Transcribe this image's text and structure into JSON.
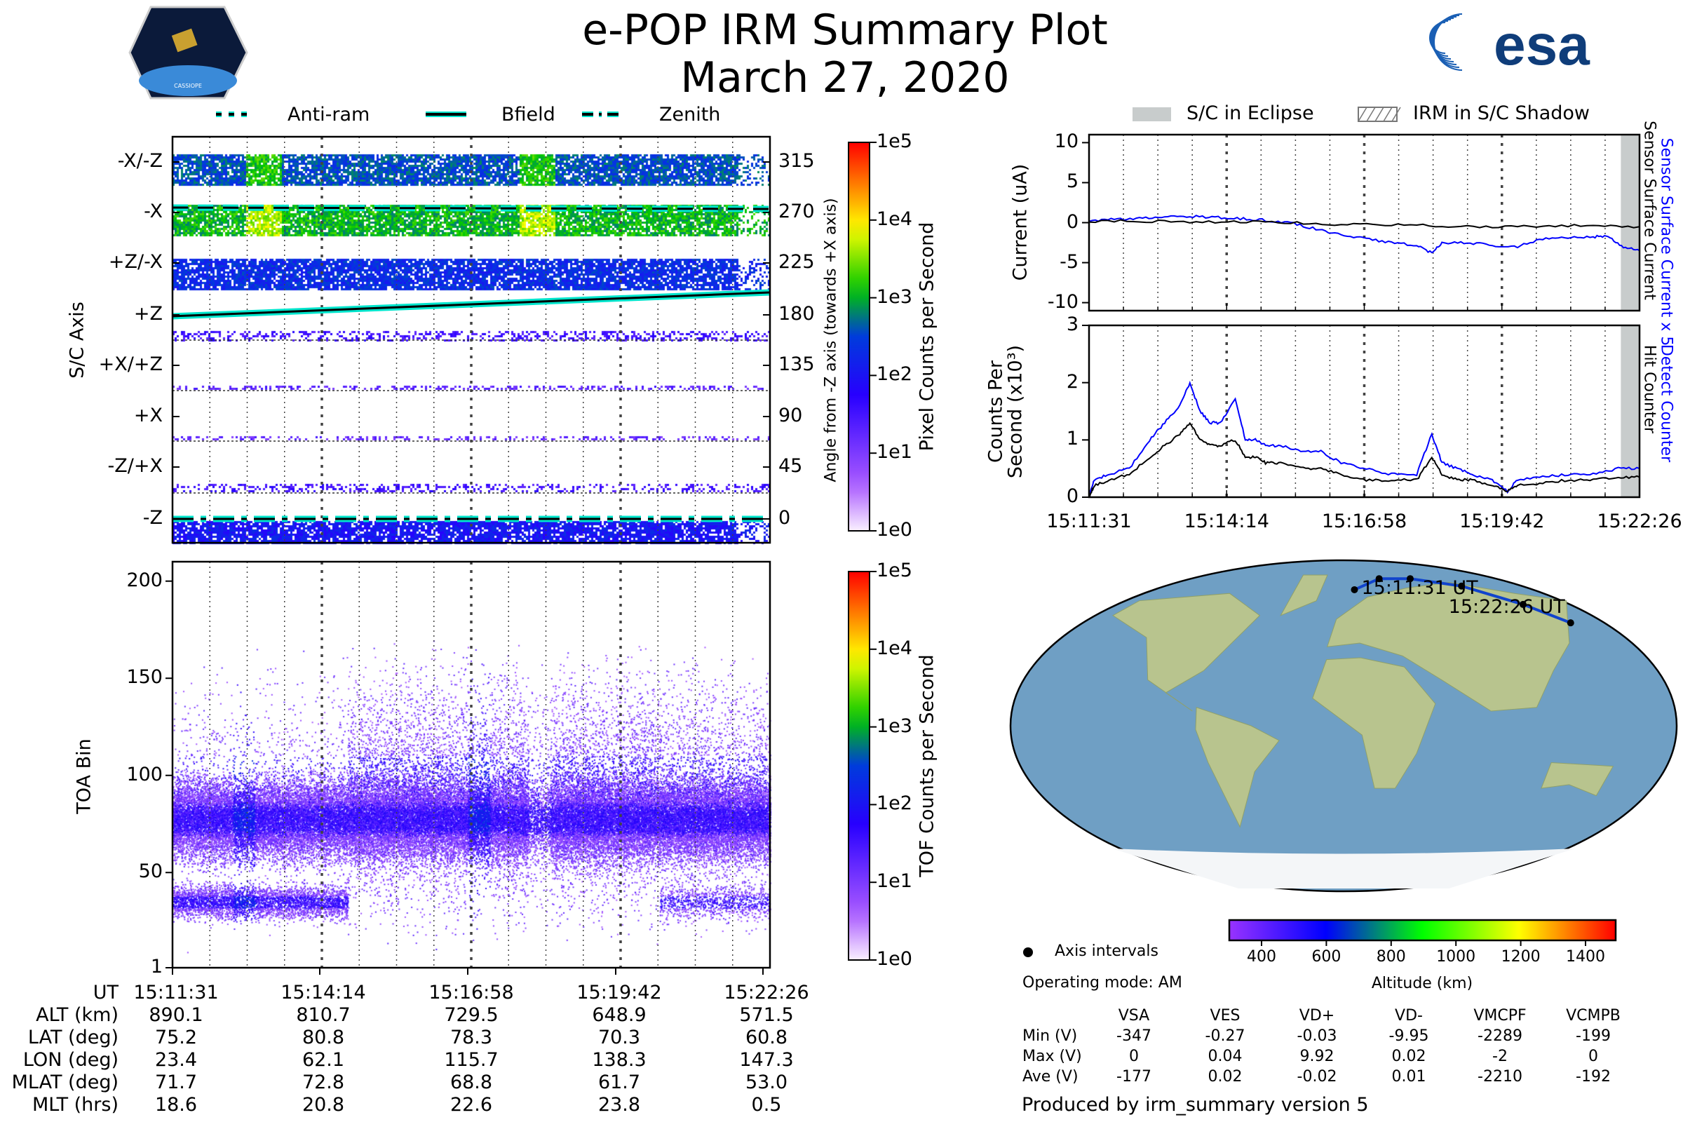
{
  "header": {
    "title": "e-POP IRM Summary Plot",
    "date": "March 27, 2020",
    "left_logo_text": "CASSIOPE",
    "right_logo_text": "esa"
  },
  "legend_left": [
    {
      "label": "Anti-ram",
      "style": "dashed"
    },
    {
      "label": "Bfield",
      "style": "solid"
    },
    {
      "label": "Zenith",
      "style": "dash-dot"
    }
  ],
  "legend_right": [
    {
      "label": "S/C in Eclipse"
    },
    {
      "label": "IRM in S/C Shadow"
    }
  ],
  "colors": {
    "cyan": "#00e5cc",
    "blue": "#0000ff",
    "eclipse": "#c8cccc"
  },
  "chart_data": [
    {
      "type": "heatmap",
      "name": "pixel-spectrogram",
      "ylabel": "S/C Axis",
      "ylabel_right": "Angle from -Z axis (towards +X axis)",
      "row_labels": [
        "-X/-Z",
        "-X",
        "+Z/-X",
        "+Z",
        "+X/+Z",
        "+X",
        "-Z/+X",
        "-Z"
      ],
      "right_ticks": [
        "315",
        "270",
        "225",
        "180",
        "135",
        "90",
        "45",
        "0"
      ],
      "colorbar_label": "Pixel Counts per Second",
      "colorbar_ticks": [
        "1e5",
        "1e4",
        "1e3",
        "1e2",
        "1e1",
        "1e0"
      ],
      "bfield_angle": {
        "x_min": [
          0,
          10.92
        ],
        "deg": [
          187,
          206
        ]
      },
      "antiram_angle_deg": 277,
      "zenith_angle_deg": 0
    },
    {
      "type": "heatmap",
      "name": "tof-spectrogram",
      "ylabel": "TOA Bin",
      "yticks": [
        "200",
        "150",
        "100",
        "50",
        "1"
      ],
      "ylim": [
        1,
        210
      ],
      "colorbar_label": "TOF Counts per Second",
      "colorbar_ticks": [
        "1e5",
        "1e4",
        "1e3",
        "1e2",
        "1e1",
        "1e0"
      ]
    },
    {
      "type": "line",
      "name": "current",
      "ylabel": "Current (uA)",
      "yticks": [
        "10",
        "5",
        "0",
        "-5",
        "-10"
      ],
      "ylim": [
        -11,
        11
      ],
      "series": [
        {
          "name": "Sensor Surface Current x 5",
          "color": "#0000ff",
          "x": [
            0,
            0.5,
            1,
            1.5,
            2,
            2.5,
            3,
            3.5,
            4,
            4.5,
            5,
            5.5,
            6,
            6.5,
            6.8,
            7,
            7.5,
            8,
            8.5,
            9,
            9.5,
            10,
            10.3,
            10.6,
            10.92
          ],
          "y": [
            0.3,
            0.4,
            0.5,
            0.7,
            0.8,
            0.7,
            0.5,
            0.3,
            0,
            -0.8,
            -1.5,
            -2,
            -2.5,
            -2.8,
            -3.8,
            -2.6,
            -2.5,
            -2.8,
            -3,
            -2,
            -1.8,
            -1.8,
            -1.7,
            -3,
            -3.5
          ]
        },
        {
          "name": "Sensor Surface Current",
          "color": "#000000",
          "x": [
            0,
            1,
            2,
            3,
            4,
            5,
            6,
            7,
            8,
            9,
            10,
            10.92
          ],
          "y": [
            0.2,
            0.2,
            0.1,
            0.1,
            0,
            -0.2,
            -0.3,
            -0.4,
            -0.5,
            -0.4,
            -0.4,
            -0.5
          ]
        }
      ],
      "eclipse_from_min": 10.55
    },
    {
      "type": "line",
      "name": "counts",
      "ylabel": "Counts Per Second (x10³)",
      "yticks": [
        "3",
        "2",
        "1",
        "0"
      ],
      "ylim": [
        0,
        3
      ],
      "xticks": [
        "15:11:31",
        "15:14:14",
        "15:16:58",
        "15:19:42",
        "15:22:26"
      ],
      "series": [
        {
          "name": "Detect Counter",
          "color": "#0000ff",
          "x": [
            0,
            0.1,
            0.4,
            0.8,
            1.2,
            1.5,
            1.8,
            2,
            2.2,
            2.4,
            2.6,
            2.9,
            3.1,
            3.3,
            3.5,
            3.8,
            4.2,
            4.6,
            5,
            5.5,
            6,
            6.5,
            6.8,
            7,
            7.3,
            7.6,
            8,
            8.3,
            8.5,
            9,
            9.5,
            10,
            10.5,
            10.92
          ],
          "y": [
            0,
            0.3,
            0.4,
            0.5,
            1.0,
            1.3,
            1.6,
            2.0,
            1.5,
            1.3,
            1.3,
            1.7,
            1.0,
            1.0,
            0.9,
            0.9,
            0.8,
            0.8,
            0.6,
            0.5,
            0.4,
            0.4,
            1.1,
            0.6,
            0.5,
            0.4,
            0.3,
            0.1,
            0.3,
            0.35,
            0.4,
            0.4,
            0.5,
            0.5
          ]
        },
        {
          "name": "Hit Counter",
          "color": "#000000",
          "x": [
            0,
            0.1,
            0.4,
            0.8,
            1.2,
            1.5,
            1.8,
            2,
            2.2,
            2.4,
            2.6,
            2.9,
            3.1,
            3.3,
            3.5,
            3.8,
            4.2,
            4.6,
            5,
            5.5,
            6,
            6.5,
            6.8,
            7,
            7.3,
            7.6,
            8,
            8.3,
            8.5,
            9,
            9.5,
            10,
            10.5,
            10.92
          ],
          "y": [
            0,
            0.2,
            0.3,
            0.4,
            0.7,
            0.9,
            1.1,
            1.3,
            1.0,
            0.9,
            0.9,
            1.0,
            0.7,
            0.7,
            0.6,
            0.6,
            0.5,
            0.5,
            0.4,
            0.3,
            0.3,
            0.3,
            0.7,
            0.4,
            0.3,
            0.3,
            0.2,
            0.1,
            0.2,
            0.25,
            0.3,
            0.3,
            0.35,
            0.35
          ]
        }
      ],
      "eclipse_from_min": 10.55
    }
  ],
  "map": {
    "start_label": "15:11:31 UT",
    "end_label": "15:22:26 UT",
    "track": {
      "lon": [
        10,
        40,
        75,
        115,
        140,
        155
      ],
      "lat": [
        74,
        80,
        80,
        76,
        66,
        56
      ]
    },
    "legend_dot_label": "Axis intervals",
    "operating_mode": "Operating mode: AM",
    "colorbar_label": "Altitude (km)",
    "colorbar_ticks": [
      "400",
      "600",
      "800",
      "1000",
      "1200",
      "1400"
    ]
  },
  "ephemeris": {
    "row_labels": [
      "UT",
      "ALT (km)",
      "LAT (deg)",
      "LON (deg)",
      "MLAT (deg)",
      "MLT (hrs)"
    ],
    "columns": [
      [
        "15:11:31",
        "890.1",
        "75.2",
        "23.4",
        "71.7",
        "18.6"
      ],
      [
        "15:14:14",
        "810.7",
        "80.8",
        "62.1",
        "72.8",
        "20.8"
      ],
      [
        "15:16:58",
        "729.5",
        "78.3",
        "115.7",
        "68.8",
        "22.6"
      ],
      [
        "15:19:42",
        "648.9",
        "70.3",
        "138.3",
        "61.7",
        "23.8"
      ],
      [
        "15:22:26",
        "571.5",
        "60.8",
        "147.3",
        "53.0",
        "0.5"
      ]
    ]
  },
  "voltages": {
    "headers": [
      "VSA",
      "VES",
      "VD+",
      "VD-",
      "VMCPF",
      "VCMPB"
    ],
    "rows": [
      {
        "label": "Min (V)",
        "values": [
          "-347",
          "-0.27",
          "-0.03",
          "-9.95",
          "-2289",
          "-199"
        ]
      },
      {
        "label": "Max (V)",
        "values": [
          "0",
          "0.04",
          "9.92",
          "0.02",
          "-2",
          "0"
        ]
      },
      {
        "label": "Ave (V)",
        "values": [
          "-177",
          "0.02",
          "-0.02",
          "0.01",
          "-2210",
          "-192"
        ]
      }
    ]
  },
  "footer": "Produced by irm_summary version 5"
}
